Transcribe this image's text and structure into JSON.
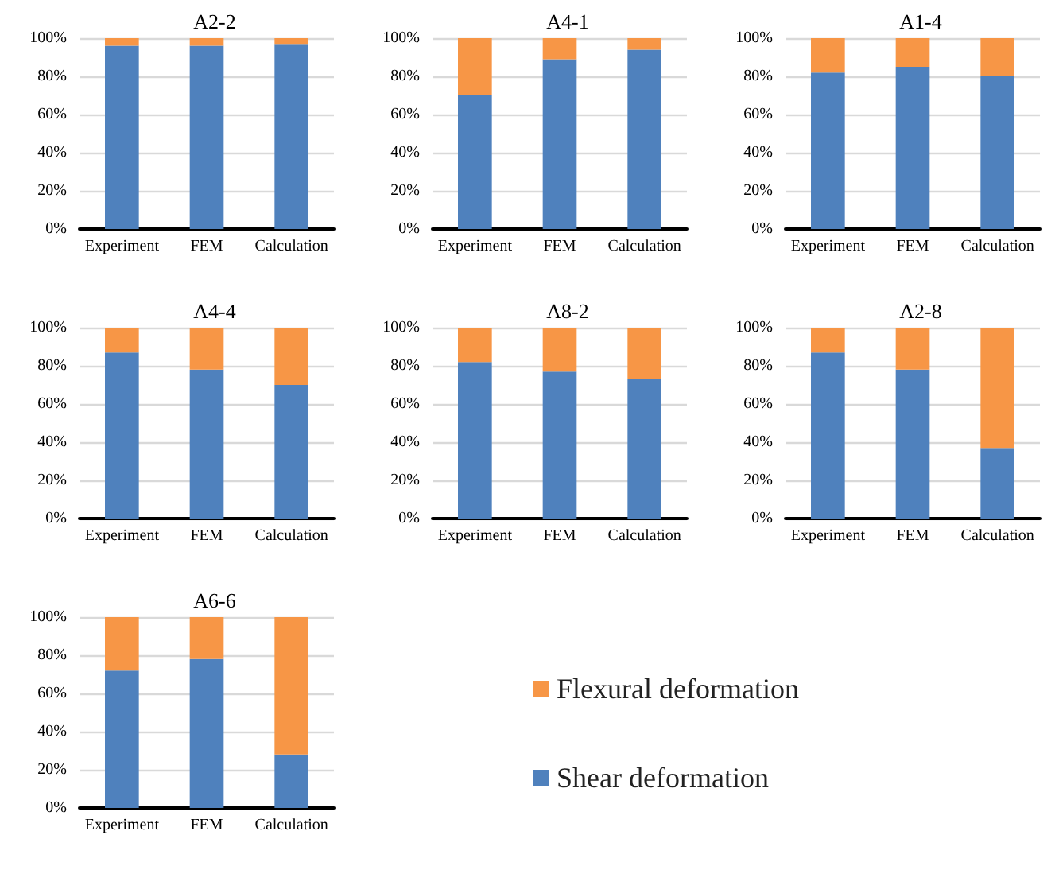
{
  "chart_data": [
    {
      "type": "bar",
      "title": "A2-2",
      "categories": [
        "Experiment",
        "FEM",
        "Calculation"
      ],
      "stacked": true,
      "ylim": [
        0,
        100
      ],
      "yticks": [
        {
          "value": 0,
          "label": "0%"
        },
        {
          "value": 20,
          "label": "20%"
        },
        {
          "value": 40,
          "label": "40%"
        },
        {
          "value": 60,
          "label": "60%"
        },
        {
          "value": 80,
          "label": "80%"
        },
        {
          "value": 100,
          "label": "100%"
        }
      ],
      "grid": "y",
      "legend": false,
      "series": [
        {
          "color": "#4f81bd",
          "values": [
            96,
            96,
            97
          ]
        },
        {
          "color": "#f79646",
          "values": [
            4,
            4,
            3
          ]
        }
      ]
    },
    {
      "type": "bar",
      "title": "A4-1",
      "categories": [
        "Experiment",
        "FEM",
        "Calculation"
      ],
      "stacked": true,
      "ylim": [
        0,
        100
      ],
      "yticks": [
        {
          "value": 0,
          "label": "0%"
        },
        {
          "value": 20,
          "label": "20%"
        },
        {
          "value": 40,
          "label": "40%"
        },
        {
          "value": 60,
          "label": "60%"
        },
        {
          "value": 80,
          "label": "80%"
        },
        {
          "value": 100,
          "label": "100%"
        }
      ],
      "grid": "y",
      "legend": false,
      "series": [
        {
          "color": "#4f81bd",
          "values": [
            70,
            89,
            94
          ]
        },
        {
          "color": "#f79646",
          "values": [
            30,
            11,
            6
          ]
        }
      ]
    },
    {
      "type": "bar",
      "title": "A1-4",
      "categories": [
        "Experiment",
        "FEM",
        "Calculation"
      ],
      "stacked": true,
      "ylim": [
        0,
        100
      ],
      "yticks": [
        {
          "value": 0,
          "label": "0%"
        },
        {
          "value": 20,
          "label": "20%"
        },
        {
          "value": 40,
          "label": "40%"
        },
        {
          "value": 60,
          "label": "60%"
        },
        {
          "value": 80,
          "label": "80%"
        },
        {
          "value": 100,
          "label": "100%"
        }
      ],
      "grid": "y",
      "legend": false,
      "series": [
        {
          "color": "#4f81bd",
          "values": [
            82,
            85,
            80
          ]
        },
        {
          "color": "#f79646",
          "values": [
            18,
            15,
            20
          ]
        }
      ]
    },
    {
      "type": "bar",
      "title": "A4-4",
      "categories": [
        "Experiment",
        "FEM",
        "Calculation"
      ],
      "stacked": true,
      "ylim": [
        0,
        100
      ],
      "yticks": [
        {
          "value": 0,
          "label": "0%"
        },
        {
          "value": 20,
          "label": "20%"
        },
        {
          "value": 40,
          "label": "40%"
        },
        {
          "value": 60,
          "label": "60%"
        },
        {
          "value": 80,
          "label": "80%"
        },
        {
          "value": 100,
          "label": "100%"
        }
      ],
      "grid": "y",
      "legend": false,
      "series": [
        {
          "color": "#4f81bd",
          "values": [
            87,
            78,
            70
          ]
        },
        {
          "color": "#f79646",
          "values": [
            13,
            22,
            30
          ]
        }
      ]
    },
    {
      "type": "bar",
      "title": "A8-2",
      "categories": [
        "Experiment",
        "FEM",
        "Calculation"
      ],
      "stacked": true,
      "ylim": [
        0,
        100
      ],
      "yticks": [
        {
          "value": 0,
          "label": "0%"
        },
        {
          "value": 20,
          "label": "20%"
        },
        {
          "value": 40,
          "label": "40%"
        },
        {
          "value": 60,
          "label": "60%"
        },
        {
          "value": 80,
          "label": "80%"
        },
        {
          "value": 100,
          "label": "100%"
        }
      ],
      "grid": "y",
      "legend": false,
      "series": [
        {
          "color": "#4f81bd",
          "values": [
            82,
            77,
            73
          ]
        },
        {
          "color": "#f79646",
          "values": [
            18,
            23,
            27
          ]
        }
      ]
    },
    {
      "type": "bar",
      "title": "A2-8",
      "categories": [
        "Experiment",
        "FEM",
        "Calculation"
      ],
      "stacked": true,
      "ylim": [
        0,
        100
      ],
      "yticks": [
        {
          "value": 0,
          "label": "0%"
        },
        {
          "value": 20,
          "label": "20%"
        },
        {
          "value": 40,
          "label": "40%"
        },
        {
          "value": 60,
          "label": "60%"
        },
        {
          "value": 80,
          "label": "80%"
        },
        {
          "value": 100,
          "label": "100%"
        }
      ],
      "grid": "y",
      "legend": false,
      "series": [
        {
          "color": "#4f81bd",
          "values": [
            87,
            78,
            37
          ]
        },
        {
          "color": "#f79646",
          "values": [
            13,
            22,
            63
          ]
        }
      ]
    },
    {
      "type": "bar",
      "title": "A6-6",
      "categories": [
        "Experiment",
        "FEM",
        "Calculation"
      ],
      "stacked": true,
      "ylim": [
        0,
        100
      ],
      "yticks": [
        {
          "value": 0,
          "label": "0%"
        },
        {
          "value": 20,
          "label": "20%"
        },
        {
          "value": 40,
          "label": "40%"
        },
        {
          "value": 60,
          "label": "60%"
        },
        {
          "value": 80,
          "label": "80%"
        },
        {
          "value": 100,
          "label": "100%"
        }
      ],
      "grid": "y",
      "legend": "right",
      "series": [
        {
          "name": "Shear deformation",
          "color": "#4f81bd",
          "values": [
            72,
            78,
            28
          ]
        },
        {
          "name": "Flexural deformation",
          "color": "#f79646",
          "values": [
            28,
            22,
            72
          ]
        }
      ]
    }
  ]
}
